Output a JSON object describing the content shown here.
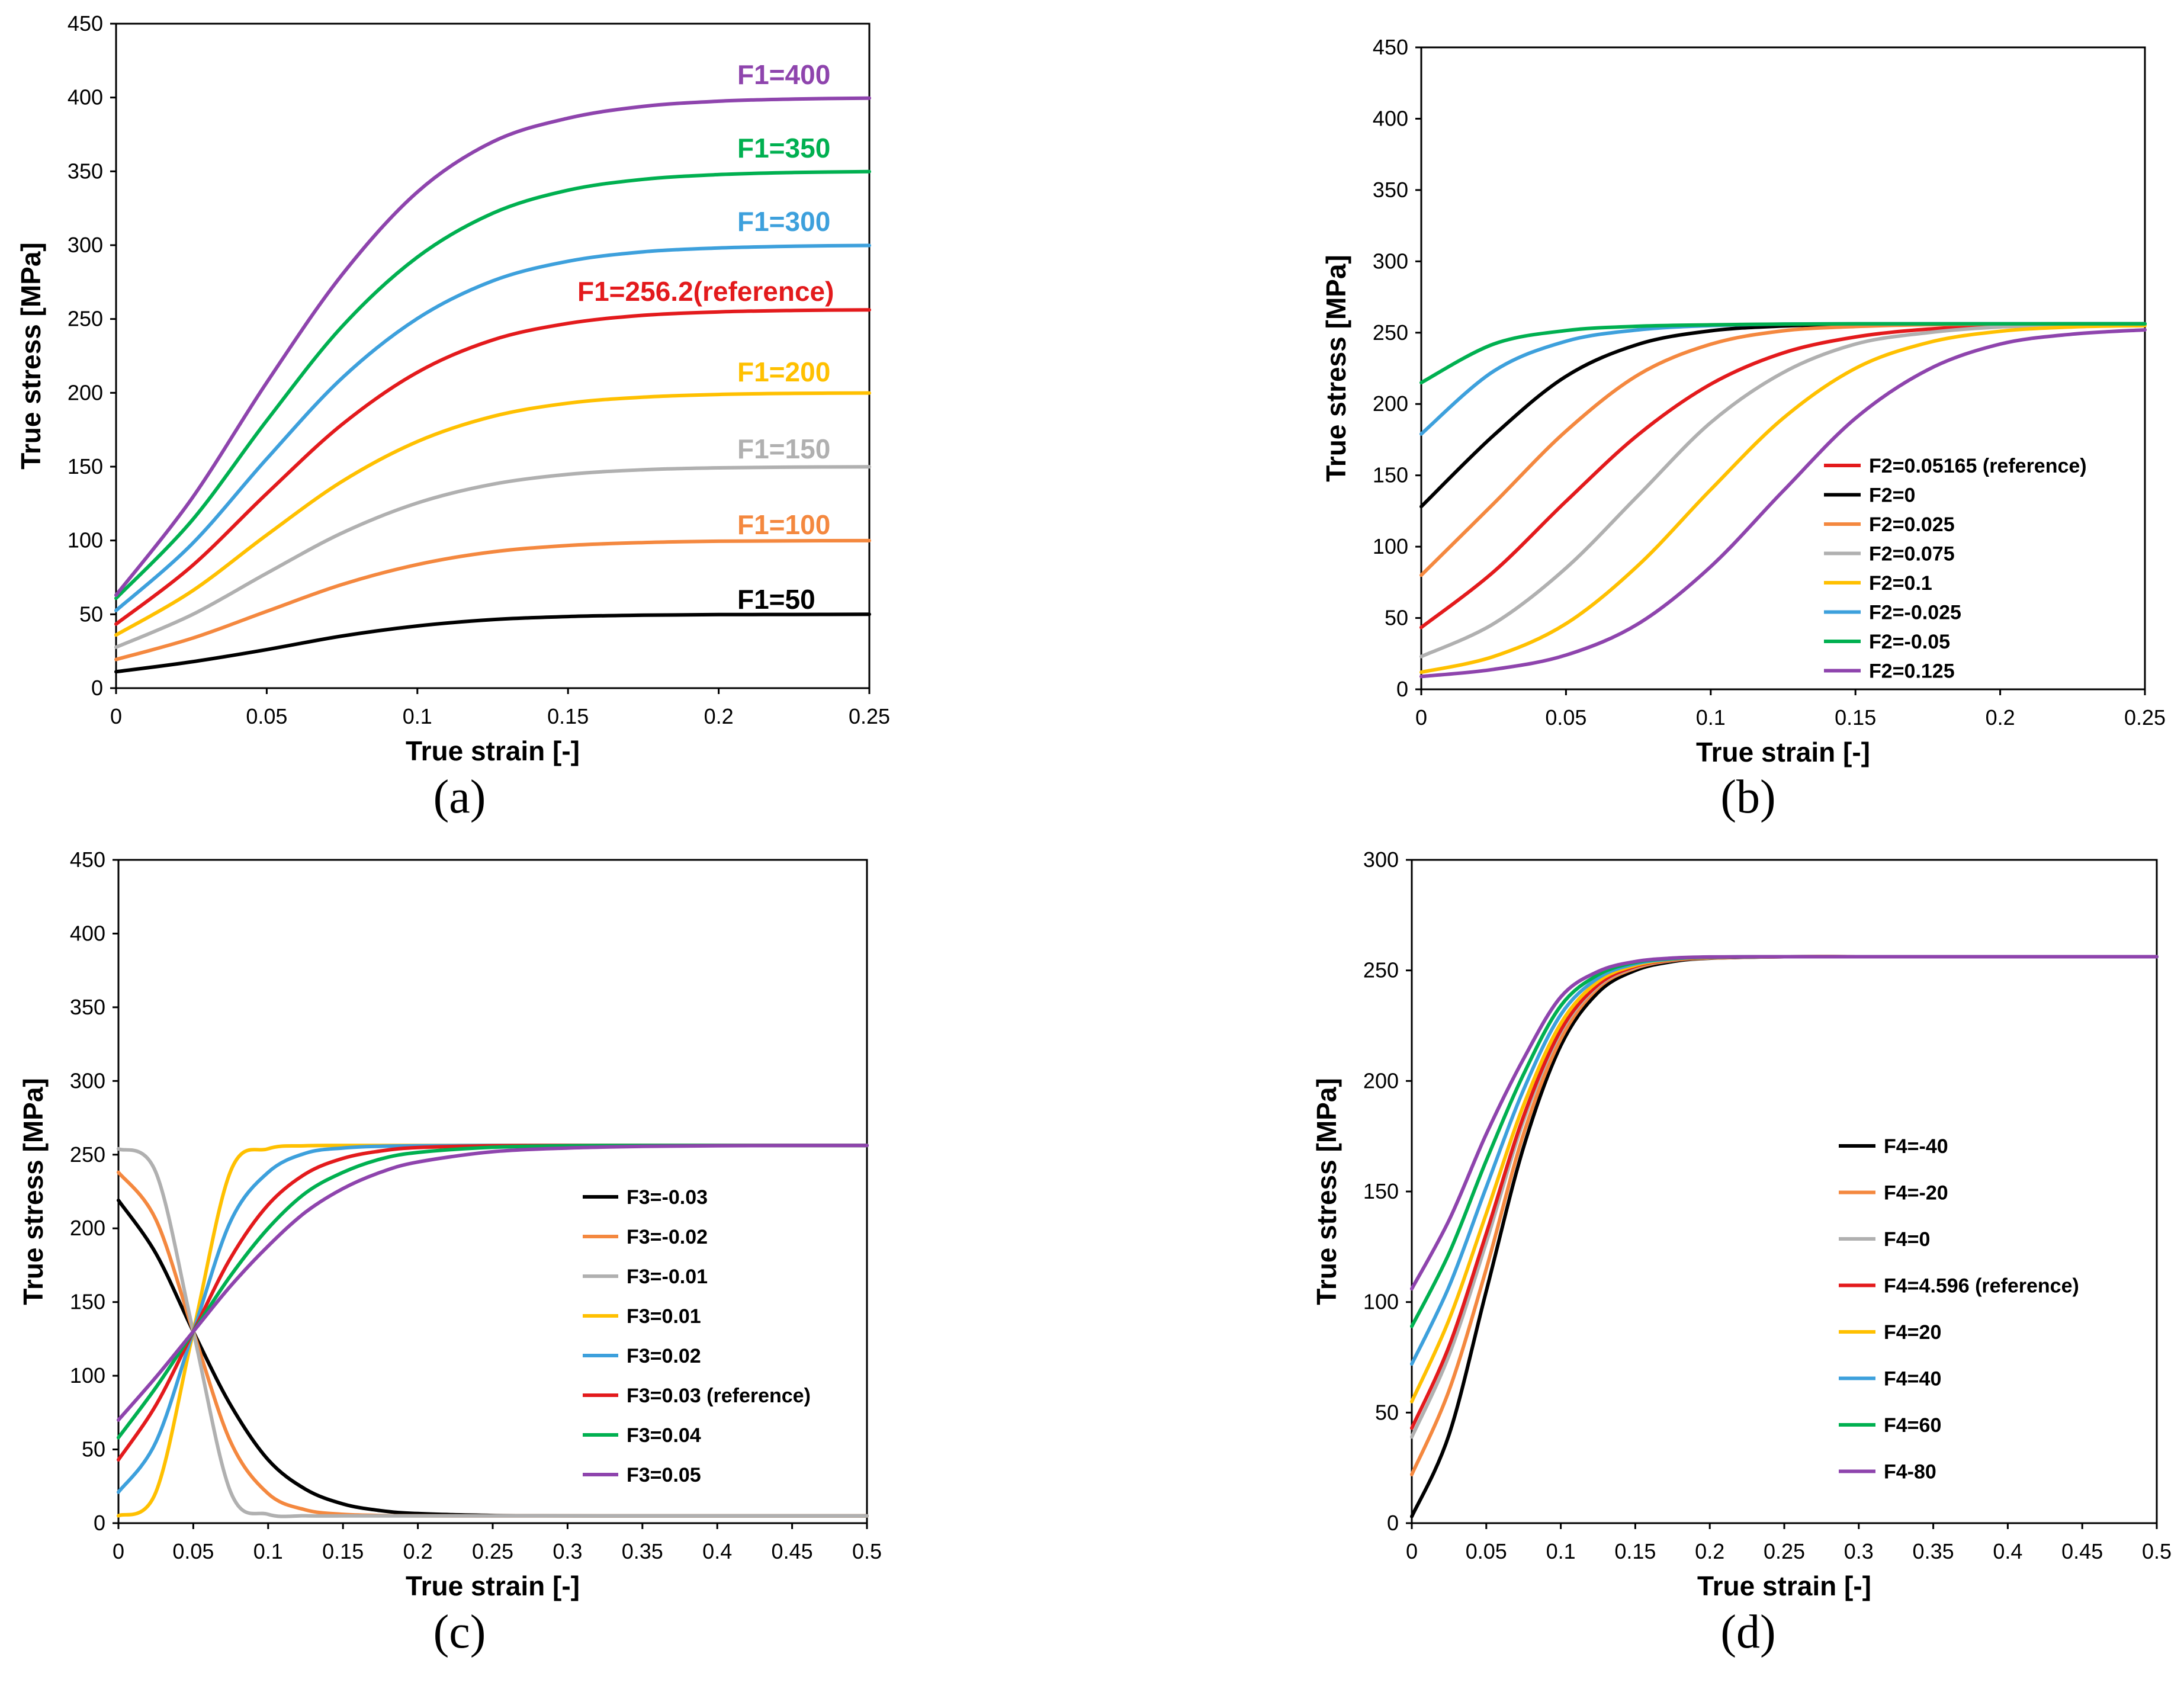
{
  "chart_data": [
    {
      "id": "a",
      "type": "line",
      "panel_label": "(a)",
      "xlabel": "True strain [-]",
      "ylabel": "True stress [MPa]",
      "xlim": [
        0,
        0.25
      ],
      "ylim": [
        0,
        450
      ],
      "xticks": [
        0,
        0.05,
        0.1,
        0.15,
        0.2,
        0.25
      ],
      "xtick_labels": [
        "0",
        "0.05",
        "0.1",
        "0.15",
        "0.2",
        "0.25"
      ],
      "yticks": [
        0,
        50,
        100,
        150,
        200,
        250,
        300,
        350,
        400,
        450
      ],
      "ytick_labels": [
        "0",
        "50",
        "100",
        "150",
        "200",
        "250",
        "300",
        "350",
        "400",
        "450"
      ],
      "legend": "direct-labels",
      "grid": false,
      "x": [
        0,
        0.025,
        0.05,
        0.075,
        0.1,
        0.125,
        0.15,
        0.175,
        0.2,
        0.225,
        0.25
      ],
      "series": [
        {
          "name": "F1=50",
          "color": "#000000",
          "values": [
            11.1,
            17.8,
            26.1,
            35.3,
            42.1,
            46.4,
            48.5,
            49.4,
            49.8,
            49.9,
            50.0
          ]
        },
        {
          "name": "F1=100",
          "color": "#F4883F",
          "values": [
            19.4,
            33.6,
            52.0,
            70.2,
            83.7,
            92.3,
            96.6,
            98.6,
            99.5,
            99.8,
            99.9
          ]
        },
        {
          "name": "F1=150",
          "color": "#B0B0B0",
          "values": [
            27.7,
            49.5,
            77.8,
            105.1,
            125.4,
            138.1,
            144.8,
            147.9,
            149.2,
            149.7,
            149.9
          ]
        },
        {
          "name": "F1=200",
          "color": "#FFC000",
          "values": [
            36.0,
            65.4,
            103.7,
            140.0,
            167.0,
            184.0,
            193.0,
            197.1,
            198.9,
            199.6,
            199.9
          ]
        },
        {
          "name": "F1=256.2(reference)",
          "color": "#E31A1C",
          "values": [
            43.4,
            82.4,
            131.8,
            178.6,
            213.9,
            235.8,
            247.0,
            252.5,
            254.8,
            255.8,
            256.2
          ]
        },
        {
          "name": "F1=300",
          "color": "#3DA0DC",
          "values": [
            52.6,
            97.2,
            155.3,
            210.0,
            250.3,
            275.8,
            289.1,
            295.5,
            298.1,
            299.3,
            299.8
          ]
        },
        {
          "name": "F1=350",
          "color": "#00B050",
          "values": [
            60.9,
            113.1,
            181.2,
            244.9,
            291.9,
            321.6,
            337.2,
            344.6,
            347.8,
            349.2,
            349.8
          ]
        },
        {
          "name": "F1=400",
          "color": "#8E44AD",
          "values": [
            63.0,
            128.0,
            207.0,
            280.0,
            336.0,
            370.0,
            386.0,
            394.0,
            397.5,
            399.0,
            399.6
          ]
        }
      ]
    },
    {
      "id": "b",
      "type": "line",
      "panel_label": "(b)",
      "xlabel": "True strain [-]",
      "ylabel": "True stress [MPa]",
      "xlim": [
        0,
        0.25
      ],
      "ylim": [
        0,
        450
      ],
      "xticks": [
        0,
        0.05,
        0.1,
        0.15,
        0.2,
        0.25
      ],
      "xtick_labels": [
        "0",
        "0.05",
        "0.1",
        "0.15",
        "0.2",
        "0.25"
      ],
      "yticks": [
        0,
        50,
        100,
        150,
        200,
        250,
        300,
        350,
        400,
        450
      ],
      "ytick_labels": [
        "0",
        "50",
        "100",
        "150",
        "200",
        "250",
        "300",
        "350",
        "400",
        "450"
      ],
      "legend": "inside-bottom-right",
      "grid": false,
      "x": [
        0,
        0.025,
        0.05,
        0.075,
        0.1,
        0.125,
        0.15,
        0.175,
        0.2,
        0.225,
        0.25
      ],
      "series": [
        {
          "name": "F2=0.05165 (reference)",
          "color": "#E31A1C",
          "values": [
            43.4,
            82.4,
            131.8,
            178.6,
            213.9,
            235.8,
            247.0,
            252.5,
            254.8,
            255.8,
            256.2
          ]
        },
        {
          "name": "F2=0",
          "color": "#000000",
          "values": [
            128.1,
            178.0,
            219.4,
            241.9,
            251.3,
            254.7,
            255.8,
            256.0,
            256.1,
            256.2,
            256.2
          ]
        },
        {
          "name": "F2=0.025",
          "color": "#F4883F",
          "values": [
            80.0,
            130.2,
            181.0,
            220.5,
            241.9,
            251.3,
            254.3,
            255.6,
            256.0,
            256.1,
            256.2
          ]
        },
        {
          "name": "F2=0.075",
          "color": "#B0B0B0",
          "values": [
            23.0,
            46.0,
            85.0,
            136.0,
            187.0,
            222.0,
            242.0,
            250.0,
            254.0,
            255.0,
            255.5
          ]
        },
        {
          "name": "F2=0.1",
          "color": "#FFC000",
          "values": [
            12.0,
            23.0,
            46.0,
            87.0,
            140.0,
            190.0,
            225.0,
            243.0,
            251.0,
            254.0,
            255.0
          ]
        },
        {
          "name": "F2=-0.025",
          "color": "#3DA0DC",
          "values": [
            179.0,
            223.0,
            244.0,
            252.0,
            255.0,
            256.0,
            256.2,
            256.2,
            256.2,
            256.2,
            256.2
          ]
        },
        {
          "name": "F2=-0.05",
          "color": "#00B050",
          "values": [
            215.0,
            242.0,
            251.5,
            254.5,
            255.5,
            256.0,
            256.2,
            256.2,
            256.2,
            256.2,
            256.2
          ]
        },
        {
          "name": "F2=0.125",
          "color": "#8E44AD",
          "values": [
            9.0,
            14.0,
            24.0,
            46.0,
            86.0,
            139.0,
            190.0,
            224.0,
            242.0,
            249.0,
            252.0
          ]
        }
      ]
    },
    {
      "id": "c",
      "type": "line",
      "panel_label": "(c)",
      "xlabel": "True strain [-]",
      "ylabel": "True stress [MPa]",
      "xlim": [
        0,
        0.5
      ],
      "ylim": [
        0,
        450
      ],
      "xticks": [
        0,
        0.05,
        0.1,
        0.15,
        0.2,
        0.25,
        0.3,
        0.35,
        0.4,
        0.45,
        0.5
      ],
      "xtick_labels": [
        "0",
        "0.05",
        "0.1",
        "0.15",
        "0.2",
        "0.25",
        "0.3",
        "0.35",
        "0.4",
        "0.45",
        "0.5"
      ],
      "yticks": [
        0,
        50,
        100,
        150,
        200,
        250,
        300,
        350,
        400,
        450
      ],
      "ytick_labels": [
        "0",
        "50",
        "100",
        "150",
        "200",
        "250",
        "300",
        "350",
        "400",
        "450"
      ],
      "legend": "inside-right",
      "grid": false,
      "x": [
        0,
        0.025,
        0.05,
        0.075,
        0.1,
        0.125,
        0.15,
        0.175,
        0.2,
        0.25,
        0.3,
        0.35,
        0.4,
        0.45,
        0.5
      ],
      "series": [
        {
          "name": "F3=-0.03",
          "color": "#000000",
          "values": [
            219.0,
            183.0,
            130.0,
            80.0,
            43.0,
            23.0,
            13.0,
            8.5,
            6.5,
            5.2,
            5.0,
            4.9,
            4.9,
            4.9,
            4.9
          ]
        },
        {
          "name": "F3=-0.02",
          "color": "#F4883F",
          "values": [
            238.0,
            206.0,
            130.0,
            55.0,
            20.0,
            9.0,
            6.0,
            5.2,
            5.0,
            4.9,
            4.9,
            4.9,
            4.9,
            4.9,
            4.9
          ]
        },
        {
          "name": "F3=-0.01",
          "color": "#B0B0B0",
          "values": [
            254.0,
            238.0,
            130.0,
            21.0,
            6.0,
            5.0,
            4.9,
            4.9,
            4.9,
            4.9,
            4.9,
            4.9,
            4.9,
            4.9,
            4.9
          ]
        },
        {
          "name": "F3=0.01",
          "color": "#FFC000",
          "values": [
            5.0,
            21.0,
            130.0,
            239.0,
            254.0,
            256.0,
            256.2,
            256.2,
            256.2,
            256.2,
            256.2,
            256.2,
            256.2,
            256.2,
            256.2
          ]
        },
        {
          "name": "F3=0.02",
          "color": "#3DA0DC",
          "values": [
            21.0,
            55.0,
            130.0,
            205.0,
            238.0,
            251.0,
            254.5,
            255.7,
            256.0,
            256.2,
            256.2,
            256.2,
            256.2,
            256.2,
            256.2
          ]
        },
        {
          "name": "F3=0.03 (reference)",
          "color": "#E31A1C",
          "values": [
            43.0,
            80.0,
            130.0,
            180.0,
            216.0,
            237.0,
            247.5,
            252.5,
            254.8,
            256.0,
            256.2,
            256.2,
            256.2,
            256.2,
            256.2
          ]
        },
        {
          "name": "F3=0.04",
          "color": "#00B050",
          "values": [
            58.0,
            92.0,
            130.0,
            168.0,
            200.0,
            224.0,
            238.0,
            247.0,
            251.5,
            255.0,
            256.0,
            256.2,
            256.2,
            256.2,
            256.2
          ]
        },
        {
          "name": "F3=0.05",
          "color": "#8E44AD",
          "values": [
            70.0,
            99.0,
            130.0,
            161.0,
            188.0,
            211.0,
            227.0,
            238.0,
            245.0,
            252.0,
            254.5,
            255.6,
            256.0,
            256.2,
            256.2
          ]
        }
      ]
    },
    {
      "id": "d",
      "type": "line",
      "panel_label": "(d)",
      "xlabel": "True strain [-]",
      "ylabel": "True stress [MPa]",
      "xlim": [
        0,
        0.5
      ],
      "ylim": [
        0,
        300
      ],
      "xticks": [
        0,
        0.05,
        0.1,
        0.15,
        0.2,
        0.25,
        0.3,
        0.35,
        0.4,
        0.45,
        0.5
      ],
      "xtick_labels": [
        "0",
        "0.05",
        "0.1",
        "0.15",
        "0.2",
        "0.25",
        "0.3",
        "0.35",
        "0.4",
        "0.45",
        "0.5"
      ],
      "yticks": [
        0,
        50,
        100,
        150,
        200,
        250,
        300
      ],
      "ytick_labels": [
        "0",
        "50",
        "100",
        "150",
        "200",
        "250",
        "300"
      ],
      "legend": "inside-right",
      "grid": false,
      "x": [
        0,
        0.025,
        0.05,
        0.075,
        0.1,
        0.125,
        0.15,
        0.175,
        0.2,
        0.25,
        0.3,
        0.35,
        0.4,
        0.45,
        0.5
      ],
      "series": [
        {
          "name": "F4=-40",
          "color": "#000000",
          "values": [
            3.0,
            40.0,
            105.0,
            170.0,
            216.0,
            240.0,
            250.0,
            254.0,
            255.5,
            256.2,
            256.2,
            256.2,
            256.2,
            256.2,
            256.2
          ]
        },
        {
          "name": "F4=-20",
          "color": "#F4883F",
          "values": [
            22.0,
            60.0,
            115.0,
            176.0,
            219.0,
            242.0,
            251.0,
            254.5,
            255.6,
            256.2,
            256.2,
            256.2,
            256.2,
            256.2,
            256.2
          ]
        },
        {
          "name": "F4=0",
          "color": "#B0B0B0",
          "values": [
            39.0,
            76.0,
            127.0,
            182.0,
            222.0,
            243.0,
            251.5,
            254.7,
            255.7,
            256.2,
            256.2,
            256.2,
            256.2,
            256.2,
            256.2
          ]
        },
        {
          "name": "F4=4.596 (reference)",
          "color": "#E31A1C",
          "values": [
            43.0,
            80.0,
            131.0,
            184.0,
            223.0,
            243.5,
            251.8,
            254.8,
            255.8,
            256.2,
            256.2,
            256.2,
            256.2,
            256.2,
            256.2
          ]
        },
        {
          "name": "F4=20",
          "color": "#FFC000",
          "values": [
            55.0,
            92.0,
            140.0,
            189.0,
            226.0,
            245.0,
            252.3,
            255.0,
            255.9,
            256.2,
            256.2,
            256.2,
            256.2,
            256.2,
            256.2
          ]
        },
        {
          "name": "F4=40",
          "color": "#3DA0DC",
          "values": [
            72.0,
            107.0,
            152.0,
            196.0,
            230.0,
            246.5,
            253.0,
            255.2,
            256.0,
            256.2,
            256.2,
            256.2,
            256.2,
            256.2,
            256.2
          ]
        },
        {
          "name": "F4=60",
          "color": "#00B050",
          "values": [
            89.0,
            122.0,
            164.0,
            203.0,
            234.0,
            248.0,
            253.6,
            255.4,
            256.0,
            256.2,
            256.2,
            256.2,
            256.2,
            256.2,
            256.2
          ]
        },
        {
          "name": "F4-80",
          "color": "#8E44AD",
          "values": [
            106.0,
            137.0,
            176.0,
            210.0,
            238.0,
            249.5,
            254.0,
            255.6,
            256.1,
            256.2,
            256.2,
            256.2,
            256.2,
            256.2,
            256.2
          ]
        }
      ]
    }
  ]
}
